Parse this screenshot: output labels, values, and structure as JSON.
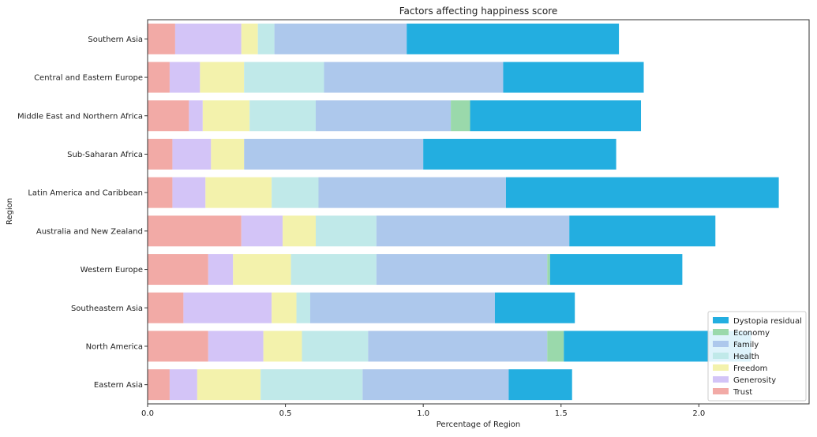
{
  "chart_data": {
    "type": "bar",
    "orientation": "horizontal",
    "stacked": true,
    "title": "Factors affecting happiness score",
    "xlabel": "Percentage of Region",
    "ylabel": "Region",
    "xlim": [
      0,
      2.4
    ],
    "xticks": [
      "0.0",
      "0.5",
      "1.0",
      "1.5",
      "2.0"
    ],
    "xtick_values": [
      0,
      0.5,
      1.0,
      1.5,
      2.0
    ],
    "grid": false,
    "legend_position": "lower-right",
    "categories": [
      "Southern Asia",
      "Central and Eastern Europe",
      "Middle East and Northern Africa",
      "Sub-Saharan Africa",
      "Latin America and Caribbean",
      "Australia and New Zealand",
      "Western Europe",
      "Southeastern Asia",
      "North America",
      "Eastern Asia"
    ],
    "series": [
      {
        "name": "Trust",
        "color": "#f2aaa6",
        "values": [
          0.1,
          0.08,
          0.15,
          0.09,
          0.09,
          0.34,
          0.22,
          0.13,
          0.22,
          0.08
        ]
      },
      {
        "name": "Generosity",
        "color": "#d3c4f7",
        "values": [
          0.24,
          0.11,
          0.05,
          0.14,
          0.12,
          0.15,
          0.09,
          0.32,
          0.2,
          0.1
        ]
      },
      {
        "name": "Freedom",
        "color": "#f3f2ac",
        "values": [
          0.06,
          0.16,
          0.17,
          0.12,
          0.24,
          0.12,
          0.21,
          0.09,
          0.14,
          0.23
        ]
      },
      {
        "name": "Health",
        "color": "#c0e9e9",
        "values": [
          0.06,
          0.29,
          0.24,
          0.0,
          0.17,
          0.22,
          0.31,
          0.05,
          0.24,
          0.37
        ]
      },
      {
        "name": "Family",
        "color": "#adc8ec",
        "values": [
          0.48,
          0.65,
          0.49,
          0.65,
          0.68,
          0.7,
          0.62,
          0.67,
          0.65,
          0.53
        ]
      },
      {
        "name": "Economy",
        "color": "#9ad9ab",
        "values": [
          0.0,
          0.0,
          0.07,
          0.0,
          0.0,
          0.0,
          0.01,
          0.0,
          0.06,
          0.0
        ]
      },
      {
        "name": "Dystopia residual",
        "color": "#23aee0",
        "values": [
          0.77,
          0.51,
          0.62,
          0.7,
          0.99,
          0.53,
          0.48,
          0.29,
          0.68,
          0.23
        ]
      }
    ],
    "legend_order": [
      "Dystopia residual",
      "Economy",
      "Family",
      "Health",
      "Freedom",
      "Generosity",
      "Trust"
    ]
  }
}
